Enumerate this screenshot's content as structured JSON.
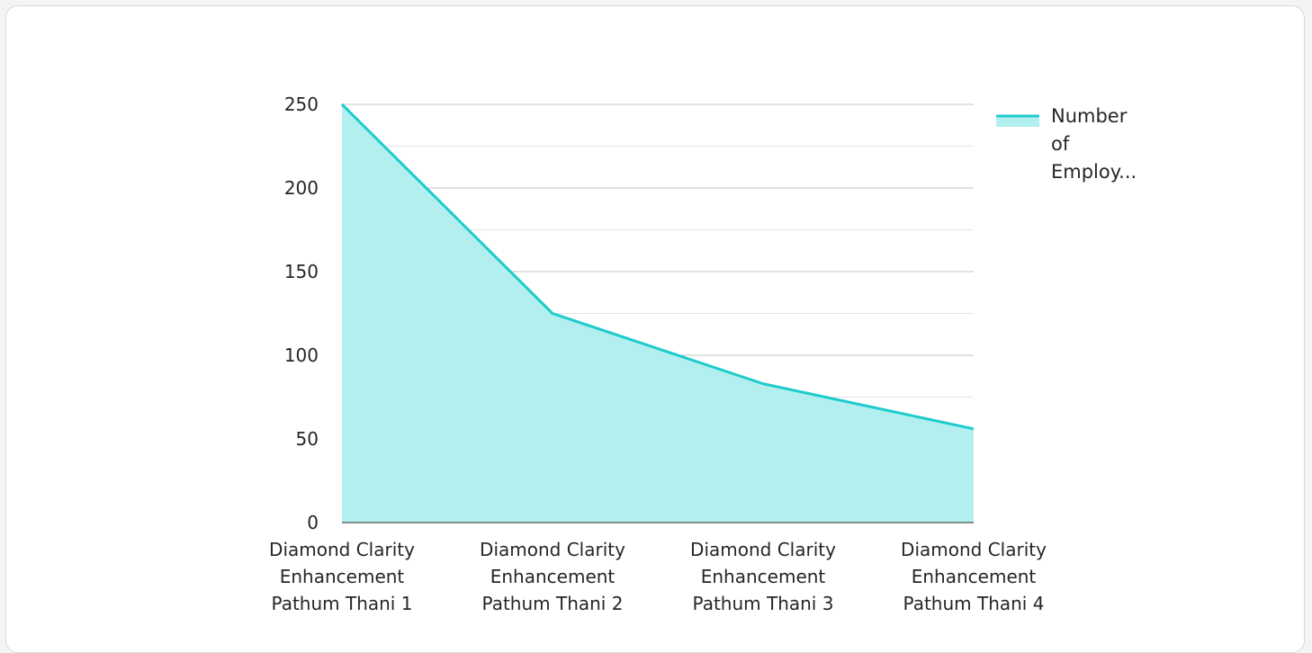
{
  "chart_data": {
    "type": "area",
    "categories": [
      [
        "Diamond Clarity",
        "Enhancement",
        "Pathum Thani 1"
      ],
      [
        "Diamond Clarity",
        "Enhancement",
        "Pathum Thani 2"
      ],
      [
        "Diamond Clarity",
        "Enhancement",
        "Pathum Thani 3"
      ],
      [
        "Diamond Clarity",
        "Enhancement",
        "Pathum Thani 4"
      ]
    ],
    "series": [
      {
        "name": "Number of Employ...",
        "legend_lines": [
          "Number",
          "of",
          "Employ..."
        ],
        "values": [
          250,
          125,
          83,
          56
        ],
        "line_color": "#1ecbcd",
        "fill_color": "#b2efee"
      }
    ],
    "y_ticks": [
      0,
      50,
      100,
      150,
      200,
      250
    ],
    "ylim": [
      0,
      250
    ],
    "grid": true,
    "legend_position": "top-right",
    "title": "",
    "xlabel": "",
    "ylabel": ""
  }
}
